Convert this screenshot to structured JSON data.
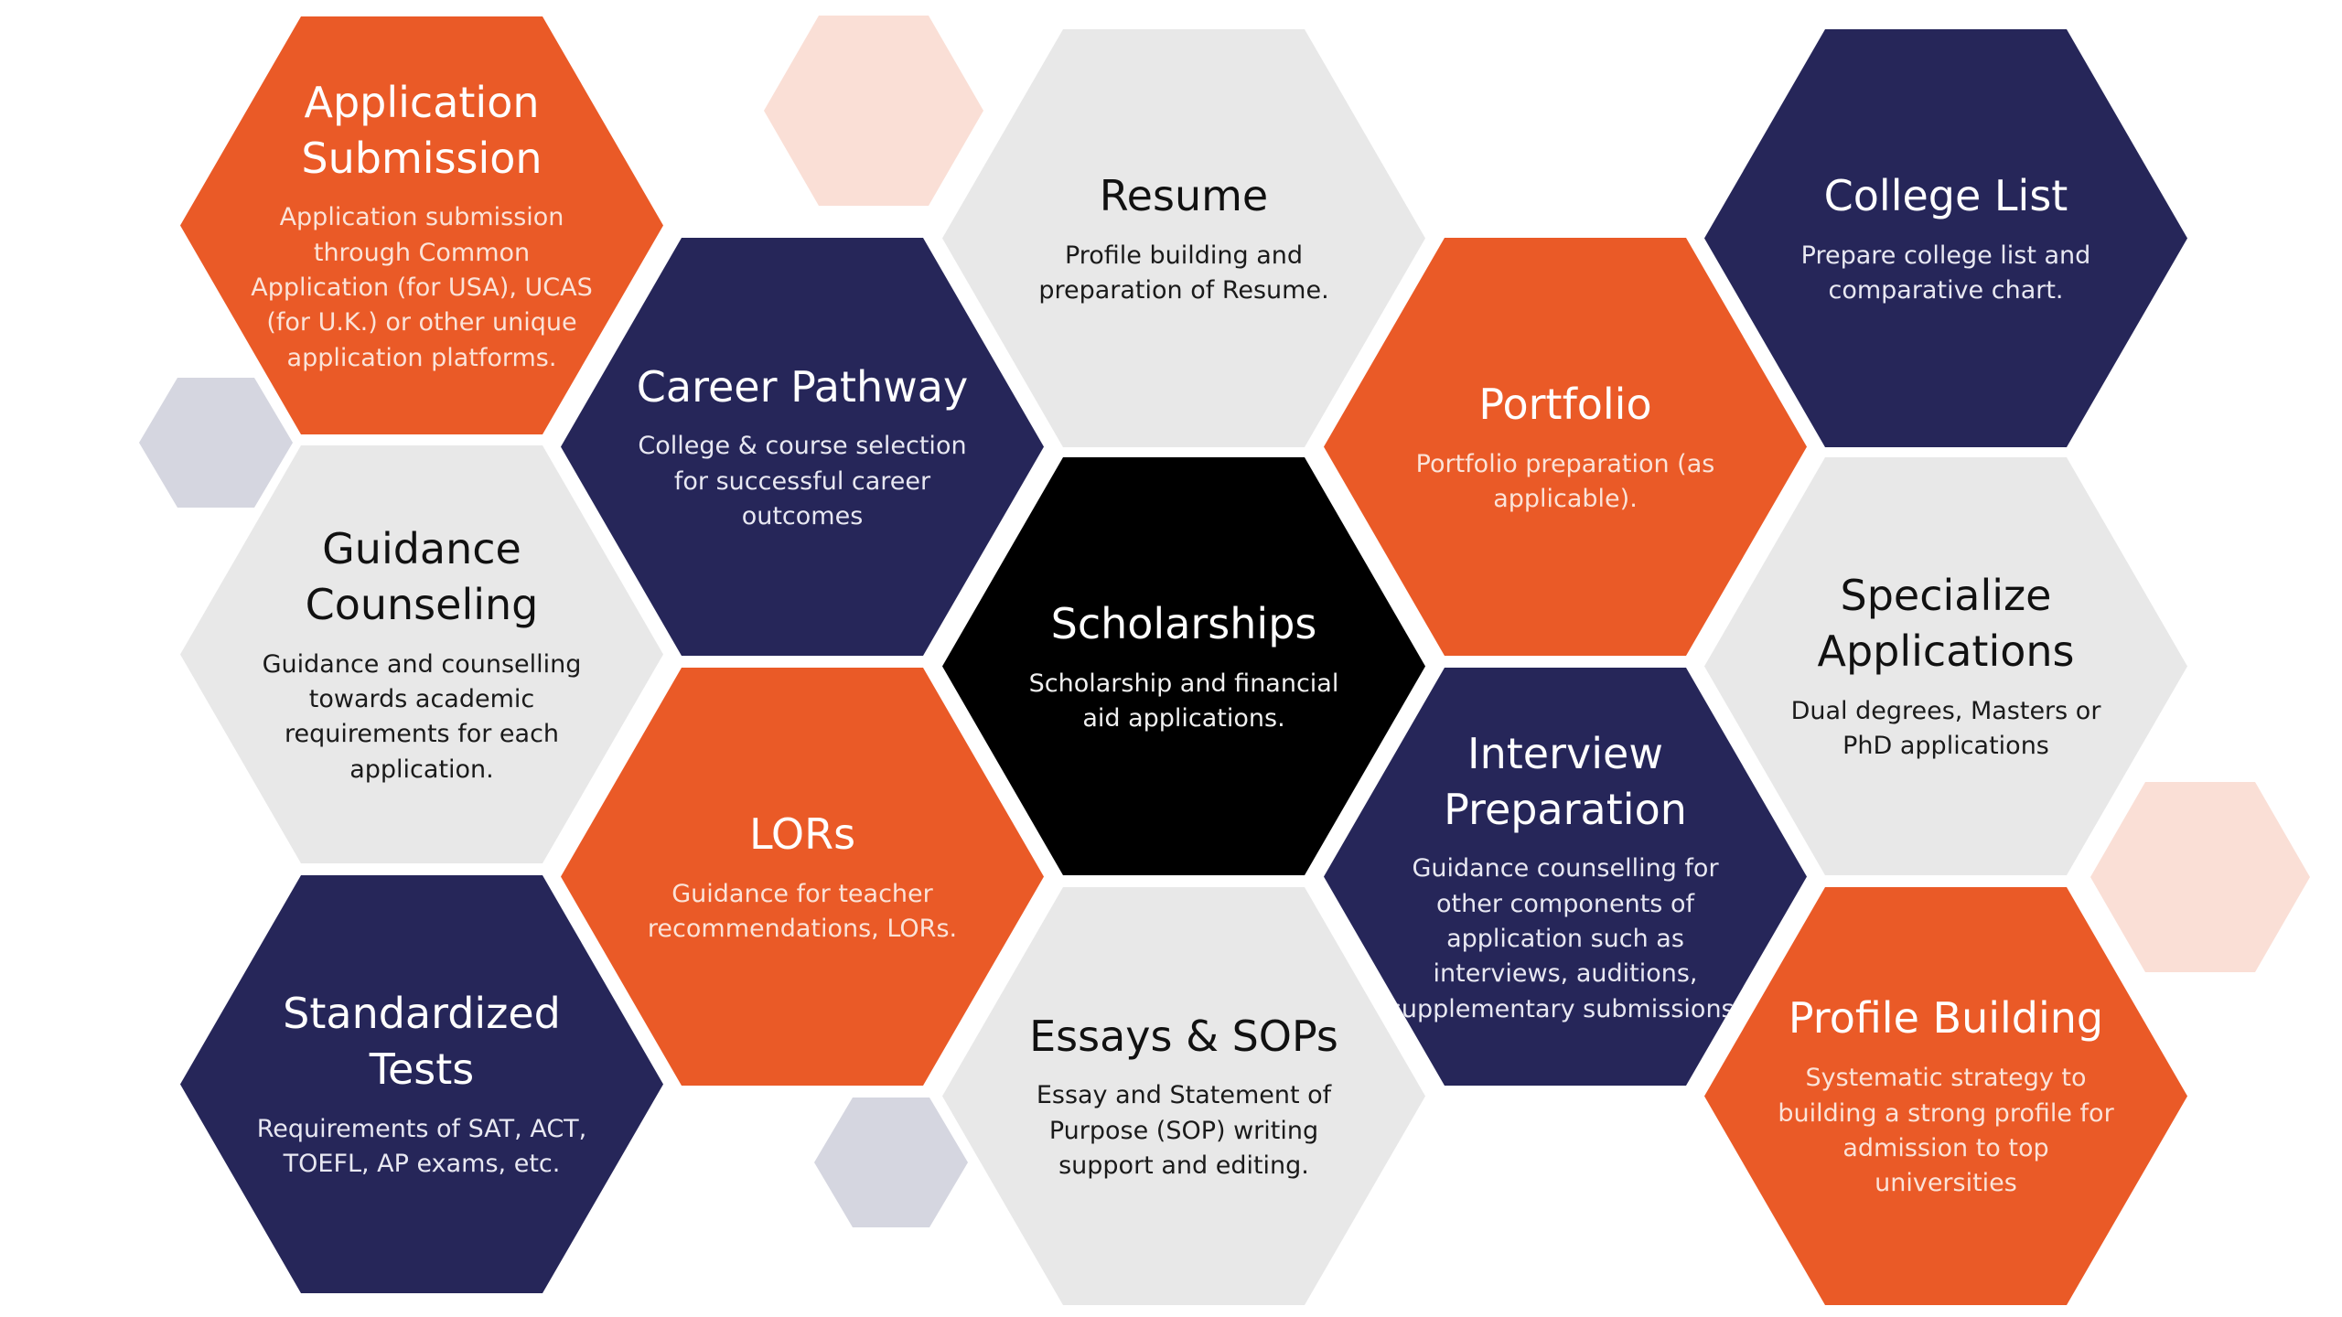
{
  "colors": {
    "orange": "#ea5a27",
    "navy": "#262659",
    "grey": "#e8e8e8",
    "black": "#000000",
    "peach": "#fadfd6",
    "lavender": "#d5d6e0"
  },
  "services": {
    "application_submission": {
      "title": "Application Submission",
      "desc": "Application submission through Common Application (for USA), UCAS (for U.K.) or other unique application platforms."
    },
    "resume": {
      "title": "Resume",
      "desc": "Profile building and preparation of Resume."
    },
    "college_list": {
      "title": "College List",
      "desc": "Prepare college list and comparative chart."
    },
    "career_pathway": {
      "title": "Career Pathway",
      "desc": "College & course selection for successful career outcomes"
    },
    "portfolio": {
      "title": "Portfolio",
      "desc": "Portfolio preparation (as applicable)."
    },
    "guidance_counseling": {
      "title": "Guidance Counseling",
      "desc": "Guidance and counselling towards academic requirements for each application."
    },
    "scholarships": {
      "title": "Scholarships",
      "desc": "Scholarship and financial aid applications."
    },
    "specialize_applications": {
      "title": "Specialize Applications",
      "desc": "Dual degrees, Masters or PhD applications"
    },
    "interview_preparation": {
      "title": "Interview Preparation",
      "desc": "Guidance counselling for other components of application such as interviews, auditions, supplementary submissions."
    },
    "lors": {
      "title": "LORs",
      "desc": "Guidance for teacher recommendations, LORs."
    },
    "standardized_tests": {
      "title": "Standardized Tests",
      "desc": "Requirements of SAT, ACT, TOEFL, AP exams, etc."
    },
    "essays_sops": {
      "title": "Essays & SOPs",
      "desc": "Essay and Statement of Purpose (SOP) writing support and editing."
    },
    "profile_building": {
      "title": "Profile Building",
      "desc": "Systematic strategy to building a strong profile for admission to top universities"
    }
  }
}
